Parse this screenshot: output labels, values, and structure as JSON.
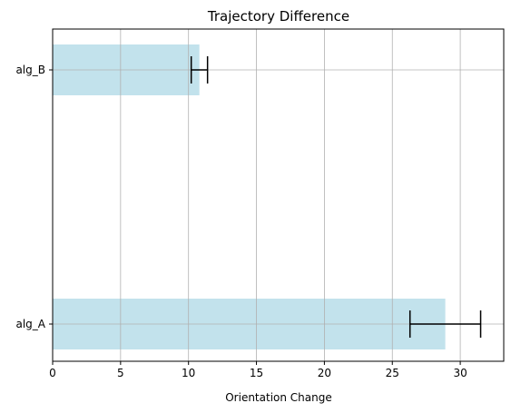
{
  "chart_data": {
    "type": "bar",
    "orientation": "horizontal",
    "title": "Trajectory Difference",
    "xlabel": "Orientation Change",
    "ylabel": "",
    "categories": [
      "alg_A",
      "alg_B"
    ],
    "values": [
      28.9,
      10.8
    ],
    "error_low": [
      26.3,
      10.2
    ],
    "error_high": [
      31.5,
      11.4
    ],
    "xlim": [
      0,
      33.2
    ],
    "xticks": [
      0,
      5,
      10,
      15,
      20,
      25,
      30
    ],
    "grid": true,
    "bar_color": "#add8e6",
    "bar_alpha": 0.75,
    "error_color": "#000000"
  }
}
